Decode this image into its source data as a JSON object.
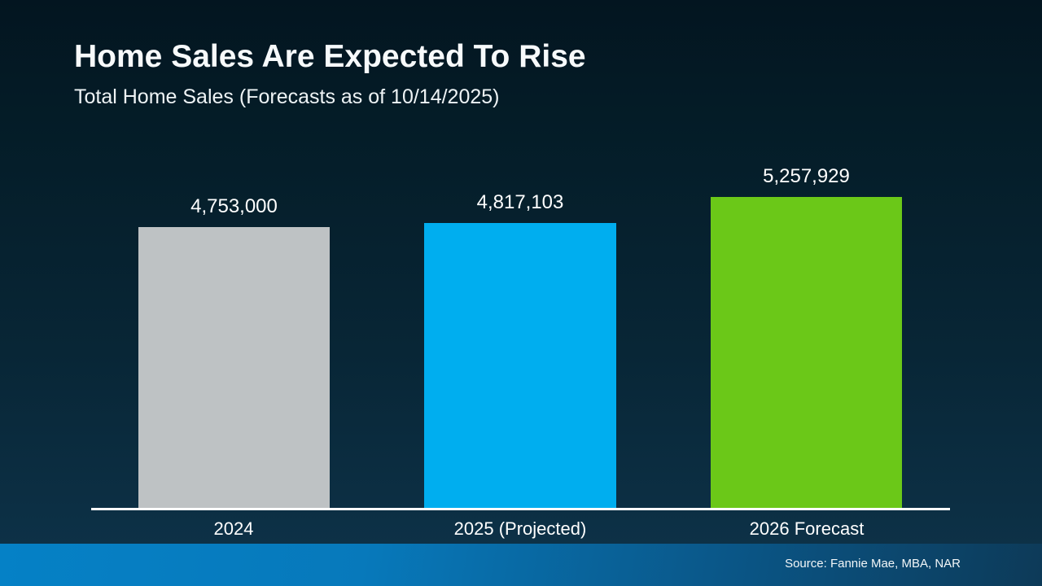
{
  "slide": {
    "title": "Home Sales Are Expected To Rise",
    "subtitle": "Total Home Sales (Forecasts as of 10/14/2025)",
    "source": "Source: Fannie Mae, MBA, NAR"
  },
  "colors": {
    "background_top": "#031520",
    "background_bottom": "#0e3349",
    "footer_left": "#0581c6",
    "footer_right": "#0d3a58",
    "axis_line": "#ffffff",
    "text": "#ffffff"
  },
  "chart_data": {
    "type": "bar",
    "title": "Home Sales Are Expected To Rise",
    "subtitle": "Total Home Sales (Forecasts as of 10/14/2025)",
    "categories": [
      "2024",
      "2025 (Projected)",
      "2026 Forecast"
    ],
    "values": [
      4753000,
      4817103,
      5257929
    ],
    "value_labels": [
      "4,753,000",
      "4,817,103",
      "5,257,929"
    ],
    "bar_colors": [
      "#bec2c4",
      "#00aeef",
      "#6bc818"
    ],
    "xlabel": "",
    "ylabel": "",
    "ylim": [
      0,
      5257929
    ],
    "grid": false,
    "legend": false,
    "source": "Source: Fannie Mae, MBA, NAR"
  }
}
